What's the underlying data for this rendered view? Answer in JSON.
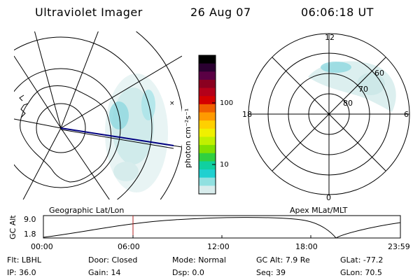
{
  "header": {
    "instrument": "Ultraviolet Imager",
    "date": "26 Aug 07",
    "time": "06:06:18 UT"
  },
  "colorbar": {
    "unit_label": "photon cm⁻²s⁻¹",
    "ticks": [
      "100",
      "10"
    ],
    "colors": [
      "#000000",
      "#2a0030",
      "#5a0044",
      "#8a0020",
      "#b4001a",
      "#d40000",
      "#f06000",
      "#ff9a00",
      "#ffd000",
      "#f0f000",
      "#c0f000",
      "#80e000",
      "#30d040",
      "#10d0a0",
      "#20d0d0",
      "#90e0e0",
      "#d8ecec"
    ]
  },
  "left_panel": {
    "caption": "Geographic Lat/Lon"
  },
  "right_panel": {
    "caption": "Apex MLat/MLT",
    "mlt_labels": {
      "top": "12",
      "left": "18",
      "right": "6",
      "bottom": "0"
    },
    "lat_labels": [
      "60",
      "70",
      "80"
    ]
  },
  "altitude_plot": {
    "ylabel": "GC Alt",
    "yticks": [
      "9.0",
      "1.8"
    ],
    "xticks": [
      "00:00",
      "06:00",
      "12:00",
      "18:00",
      "23:59"
    ]
  },
  "status": {
    "row1": [
      {
        "label": "Flt:",
        "value": "LBHL"
      },
      {
        "label": "Door:",
        "value": "Closed"
      },
      {
        "label": "Mode:",
        "value": "Normal"
      },
      {
        "label": "GC Alt:",
        "value": "7.9 Re"
      },
      {
        "label": "GLat:",
        "value": "-77.2"
      }
    ],
    "row2": [
      {
        "label": "IP:",
        "value": "36.0"
      },
      {
        "label": "Gain:",
        "value": "14"
      },
      {
        "label": "Dsp:",
        "value": "0.0"
      },
      {
        "label": "Seq:",
        "value": "39"
      },
      {
        "label": "GLon:",
        "value": "70.5"
      }
    ]
  }
}
